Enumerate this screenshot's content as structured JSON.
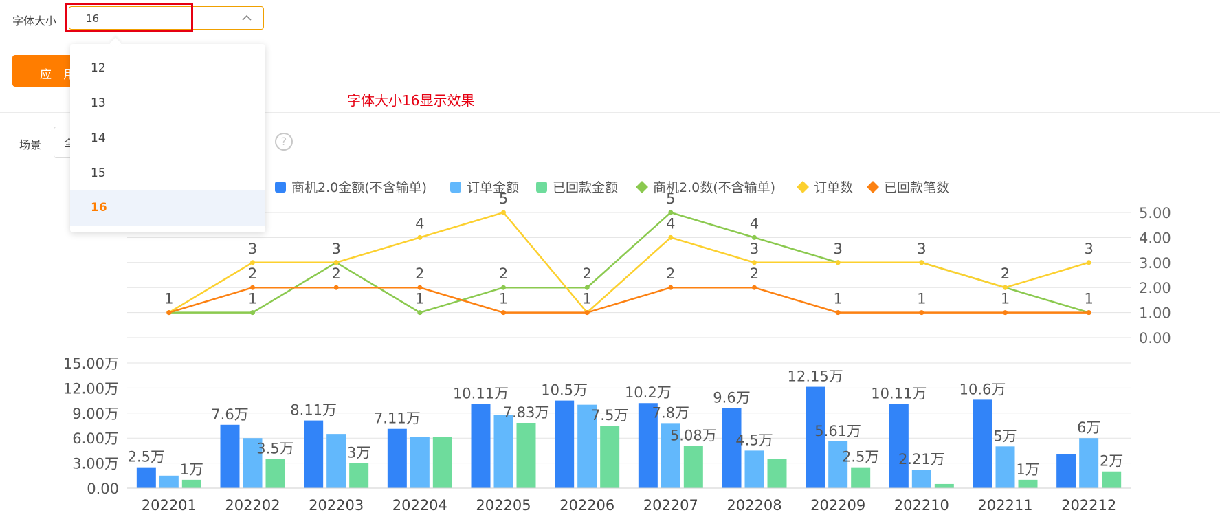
{
  "font_size": {
    "label": "字体大小",
    "value": "16",
    "options": [
      "12",
      "13",
      "14",
      "15",
      "16"
    ],
    "selected": "16"
  },
  "apply_button": "应 用",
  "note": "字体大小16显示效果",
  "scene": {
    "label": "场景",
    "value": "全",
    "help": "?"
  },
  "colors": {
    "accent": "#ff7d00",
    "highlight": "#e60012",
    "bar1": "#3284f8",
    "bar2": "#62b8fc",
    "bar3": "#6edc9c",
    "line1": "#8bc94f",
    "line2": "#fcd02f",
    "line3": "#fc8112"
  },
  "chart_data": [
    {
      "type": "line",
      "legend_position": "top",
      "categories": [
        "202201",
        "202202",
        "202203",
        "202204",
        "202205",
        "202206",
        "202207",
        "202208",
        "202209",
        "202210",
        "202211",
        "202212"
      ],
      "y_ticks": [
        "5.00",
        "4.00",
        "3.00",
        "2.00",
        "1.00",
        "0.00"
      ],
      "ylim": [
        0,
        5
      ],
      "axis_side": "right",
      "series": [
        {
          "name": "商机2.0数(不含输单)",
          "color": "#8bc94f",
          "values": [
            1,
            1,
            3,
            1,
            2,
            2,
            5,
            4,
            3,
            3,
            2,
            1
          ]
        },
        {
          "name": "订单数",
          "color": "#fcd02f",
          "values": [
            1,
            3,
            3,
            4,
            5,
            1,
            4,
            3,
            3,
            3,
            2,
            3
          ]
        },
        {
          "name": "已回款笔数",
          "color": "#fc8112",
          "values": [
            1,
            2,
            2,
            2,
            1,
            1,
            2,
            2,
            1,
            1,
            1,
            1
          ]
        }
      ]
    },
    {
      "type": "bar",
      "categories": [
        "202201",
        "202202",
        "202203",
        "202204",
        "202205",
        "202206",
        "202207",
        "202208",
        "202209",
        "202210",
        "202211",
        "202212"
      ],
      "y_ticks": [
        "15.00万",
        "12.00万",
        "9.00万",
        "6.00万",
        "3.00万",
        "0.00"
      ],
      "ylim": [
        0,
        15
      ],
      "axis_side": "left",
      "series": [
        {
          "name": "商机2.0金额(不含输单)",
          "color": "#3284f8",
          "values": [
            2.5,
            7.6,
            8.11,
            7.11,
            10.11,
            10.5,
            10.2,
            9.6,
            12.15,
            10.11,
            10.6,
            4.1
          ],
          "labels": [
            "2.5万",
            "7.6万",
            "8.11万",
            "7.11万",
            "10.11万",
            "10.5万",
            "10.2万",
            "9.6万",
            "12.15万",
            "10.11万",
            "10.6万",
            ""
          ]
        },
        {
          "name": "订单金额",
          "color": "#62b8fc",
          "values": [
            1.5,
            6.0,
            6.5,
            6.1,
            8.8,
            10.0,
            7.8,
            4.5,
            5.61,
            2.21,
            5.0,
            6.0
          ],
          "labels": [
            "",
            "",
            "",
            "",
            "",
            "",
            "7.8万",
            "4.5万",
            "5.61万",
            "2.21万",
            "5万",
            "6万"
          ]
        },
        {
          "name": "已回款金额",
          "color": "#6edc9c",
          "values": [
            1.0,
            3.5,
            3.0,
            6.1,
            7.83,
            7.5,
            5.08,
            3.5,
            2.5,
            0.5,
            1.0,
            2.0
          ],
          "labels": [
            "1万",
            "3.5万",
            "3万",
            "",
            "7.83万",
            "7.5万",
            "5.08万",
            "",
            "2.5万",
            "",
            "1万",
            "2万"
          ]
        }
      ]
    }
  ]
}
